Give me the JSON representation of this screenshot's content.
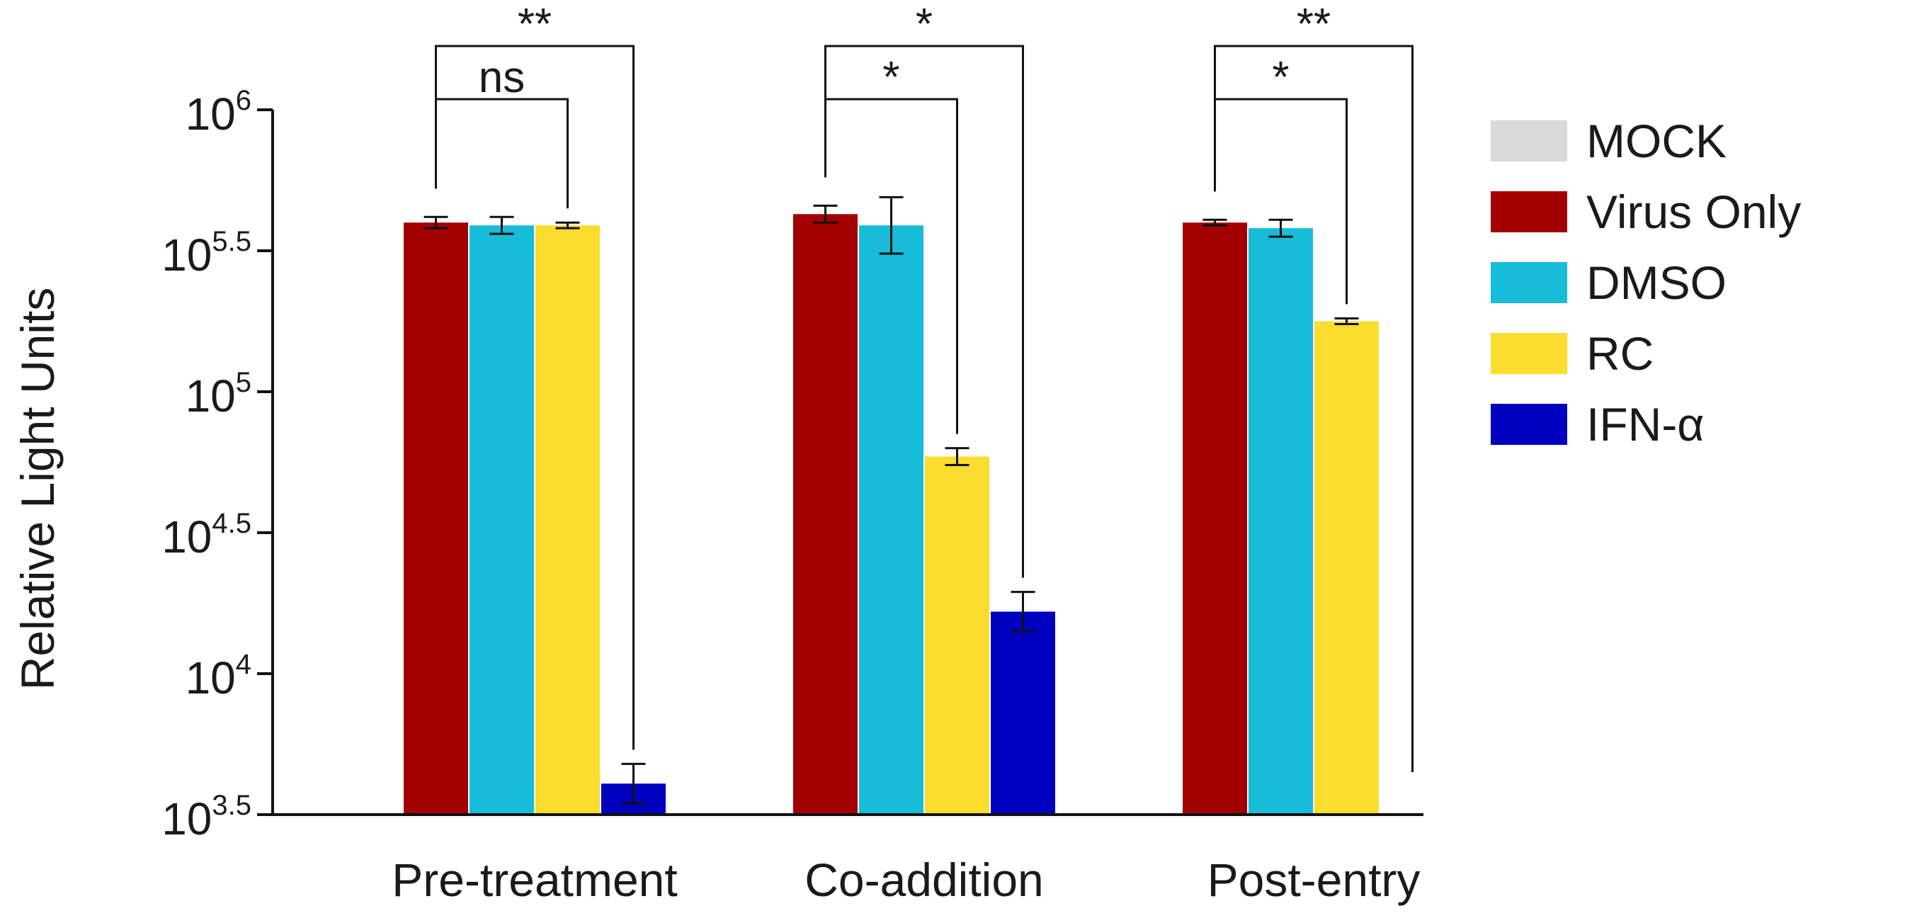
{
  "chart_data": {
    "type": "bar",
    "scale": "log10",
    "ylabel": "Relative Light Units",
    "xlabel": "",
    "ylim_exponent": [
      3.5,
      6.0
    ],
    "yticks": [
      {
        "base": "10",
        "exp": "3.5",
        "value_exp": 3.5
      },
      {
        "base": "10",
        "exp": "4",
        "value_exp": 4.0
      },
      {
        "base": "10",
        "exp": "4.5",
        "value_exp": 4.5
      },
      {
        "base": "10",
        "exp": "5",
        "value_exp": 5.0
      },
      {
        "base": "10",
        "exp": "5.5",
        "value_exp": 5.5
      },
      {
        "base": "10",
        "exp": "6",
        "value_exp": 6.0
      }
    ],
    "categories": [
      "Pre-treatment",
      "Co-addition",
      "Post-entry"
    ],
    "series": [
      {
        "name": "MOCK",
        "color": "#d9d9d9",
        "values_exp": [
          null,
          null,
          null
        ],
        "err_exp": [
          null,
          null,
          null
        ]
      },
      {
        "name": "Virus Only",
        "color": "#a30000",
        "values_exp": [
          5.6,
          5.63,
          5.6
        ],
        "err_exp": [
          0.02,
          0.03,
          0.01
        ]
      },
      {
        "name": "DMSO",
        "color": "#17bcd8",
        "values_exp": [
          5.59,
          5.59,
          5.58
        ],
        "err_exp": [
          0.03,
          0.1,
          0.03
        ]
      },
      {
        "name": "RC",
        "color": "#fcdc2e",
        "values_exp": [
          5.59,
          4.77,
          5.25
        ],
        "err_exp": [
          0.01,
          0.03,
          0.01
        ]
      },
      {
        "name": "IFN-α",
        "color": "#0000c0",
        "values_exp": [
          3.61,
          4.22,
          null
        ],
        "err_exp": [
          0.07,
          0.07,
          null
        ]
      }
    ],
    "significance": [
      {
        "category": "Pre-treatment",
        "from": "Virus Only",
        "to": "RC",
        "label": "ns",
        "level": 1
      },
      {
        "category": "Pre-treatment",
        "from": "Virus Only",
        "to": "IFN-α",
        "label": "**",
        "level": 2
      },
      {
        "category": "Co-addition",
        "from": "Virus Only",
        "to": "RC",
        "label": "*",
        "level": 1
      },
      {
        "category": "Co-addition",
        "from": "Virus Only",
        "to": "IFN-α",
        "label": "*",
        "level": 2
      },
      {
        "category": "Post-entry",
        "from": "Virus Only",
        "to": "RC",
        "label": "*",
        "level": 1
      },
      {
        "category": "Post-entry",
        "from": "Virus Only",
        "to": "IFN-α",
        "label": "**",
        "level": 2
      }
    ],
    "legend_position": "right"
  }
}
